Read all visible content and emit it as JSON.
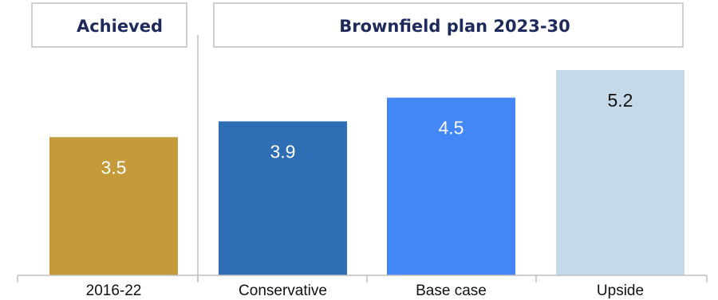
{
  "headers": {
    "achieved": "Achieved",
    "plan": "Brownfield plan 2023-30"
  },
  "chart_data": {
    "type": "bar",
    "title": "",
    "xlabel": "",
    "ylabel": "",
    "categories": [
      "2016-22",
      "Conservative",
      "Base case",
      "Upside"
    ],
    "values": [
      3.5,
      3.9,
      4.5,
      5.2
    ],
    "value_labels": [
      "3.5",
      "3.9",
      "4.5",
      "5.2"
    ],
    "ylim": [
      0,
      5.2
    ],
    "grid": false,
    "colors": [
      "#c49a3a",
      "#2e6eb5",
      "#4287f5",
      "#c5d9e8"
    ],
    "label_colors": [
      "#ffffff",
      "#ffffff",
      "#ffffff",
      "#111111"
    ]
  }
}
